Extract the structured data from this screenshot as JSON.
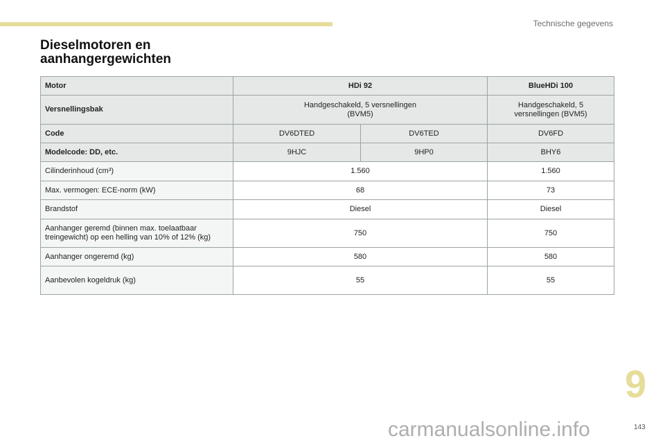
{
  "header": {
    "section": "Technische gegevens",
    "title": "Dieselmotoren en aanhangergewichten",
    "accent": "#e6dd9a"
  },
  "table": {
    "motor": {
      "label": "Motor",
      "hdi": "HDi 92",
      "bluehdi": "BlueHDi 100"
    },
    "gearbox": {
      "label": "Versnellingsbak",
      "hdi": "Handgeschakeld, 5 versnellingen (BVM5)",
      "bluehdi": "Handgeschakeld, 5 versnellingen (BVM5)"
    },
    "code": {
      "label": "Code",
      "values": [
        "DV6DTED",
        "DV6TED",
        "DV6FD"
      ]
    },
    "modelcode": {
      "label": "Modelcode: DD, etc.",
      "values": [
        "9HJC",
        "9HP0",
        "BHY6"
      ]
    },
    "rows": [
      {
        "label": "Cilinderinhoud (cm³)",
        "hdi": "1.560",
        "bluehdi": "1.560"
      },
      {
        "label": "Max. vermogen: ECE-norm (kW)",
        "hdi": "68",
        "bluehdi": "73"
      },
      {
        "label": "Brandstof",
        "hdi": "Diesel",
        "bluehdi": "Diesel"
      },
      {
        "label": "Aanhanger geremd (binnen max. toelaatbaar treingewicht) op een helling van 10% of 12% (kg)",
        "hdi": "750",
        "bluehdi": "750"
      },
      {
        "label": "Aanhanger ongeremd (kg)",
        "hdi": "580",
        "bluehdi": "580"
      },
      {
        "label": "Aanbevolen kogeldruk (kg)",
        "hdi": "55",
        "bluehdi": "55"
      }
    ]
  },
  "chapter": "9",
  "page_number": "143",
  "watermark": "carmanualsonline.info"
}
